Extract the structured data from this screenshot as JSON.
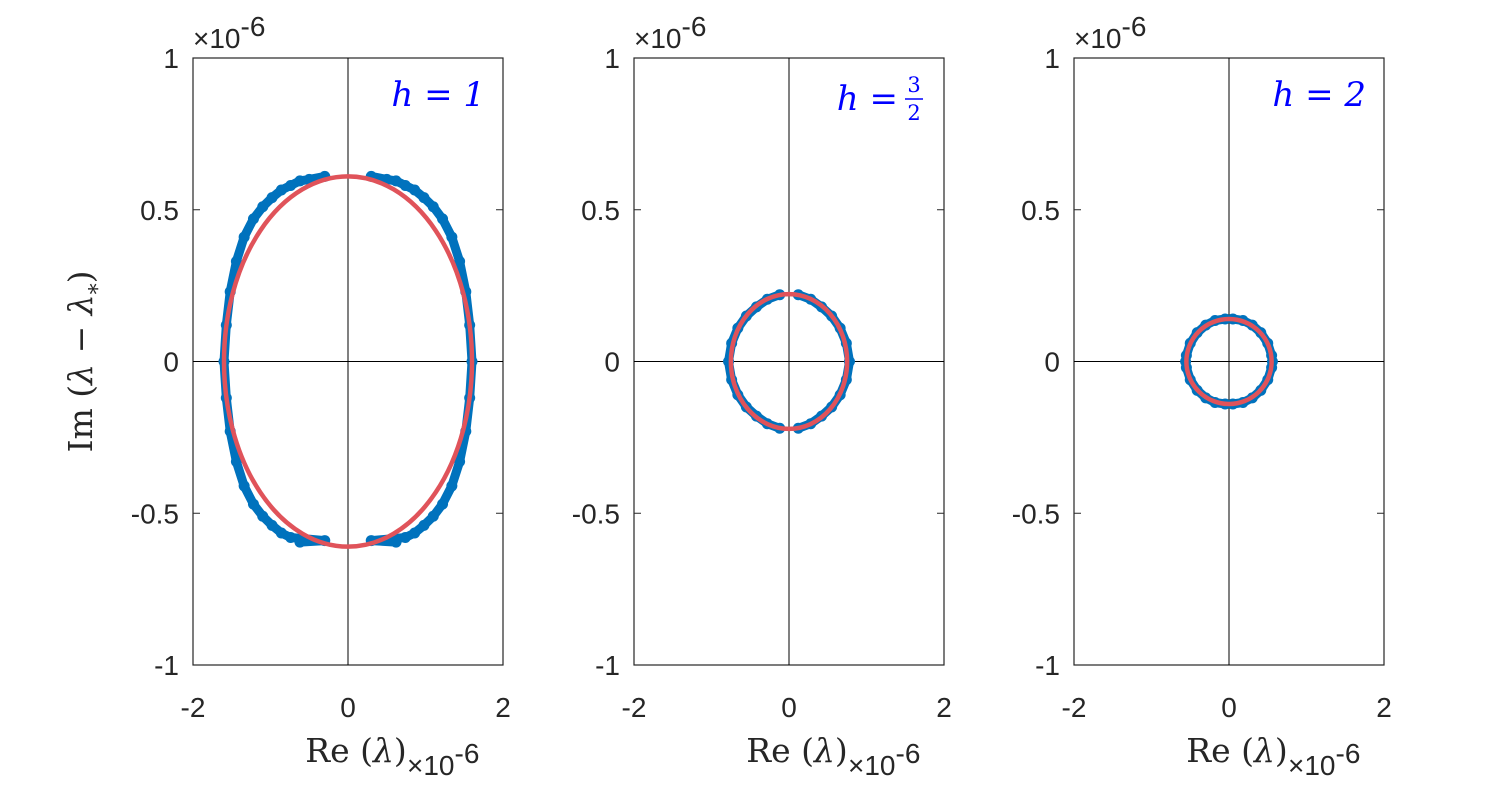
{
  "chart_data": [
    {
      "type": "scatter",
      "xlabel": "Re (λ)",
      "ylabel": "Im (λ − λ*)",
      "x_exponent": "×10-6",
      "y_exponent": "×10-6",
      "annotation": "h = 1",
      "xlim": [
        -2,
        2
      ],
      "ylim": [
        -1,
        1
      ],
      "xticks": [
        "-2",
        "0",
        "2"
      ],
      "yticks": [
        "-1",
        "-0.5",
        "0",
        "0.5",
        "1"
      ],
      "axis_lines": "cross at origin",
      "grid": false,
      "series": [
        {
          "kind": "points",
          "color": "#0072BD",
          "gap_near_imag_axis": 0.3,
          "points": [
            {
              "x": -0.3,
              "y": 0.61
            },
            {
              "x": -0.5,
              "y": 0.6
            },
            {
              "x": -0.62,
              "y": 0.595
            },
            {
              "x": -0.74,
              "y": 0.58
            },
            {
              "x": -0.86,
              "y": 0.565
            },
            {
              "x": -0.98,
              "y": 0.54
            },
            {
              "x": -1.1,
              "y": 0.51
            },
            {
              "x": -1.22,
              "y": 0.47
            },
            {
              "x": -1.34,
              "y": 0.41
            },
            {
              "x": -1.44,
              "y": 0.33
            },
            {
              "x": -1.52,
              "y": 0.23
            },
            {
              "x": -1.57,
              "y": 0.12
            },
            {
              "x": -1.6,
              "y": 0.0
            },
            {
              "x": -1.57,
              "y": -0.12
            },
            {
              "x": -1.52,
              "y": -0.23
            },
            {
              "x": -1.44,
              "y": -0.33
            },
            {
              "x": -1.34,
              "y": -0.41
            },
            {
              "x": -1.22,
              "y": -0.47
            },
            {
              "x": -1.1,
              "y": -0.51
            },
            {
              "x": -0.98,
              "y": -0.54
            },
            {
              "x": -0.86,
              "y": -0.565
            },
            {
              "x": -0.74,
              "y": -0.58
            },
            {
              "x": -0.62,
              "y": -0.595
            },
            {
              "x": -0.3,
              "y": -0.59
            },
            {
              "x": 0.3,
              "y": 0.61
            },
            {
              "x": 0.5,
              "y": 0.6
            },
            {
              "x": 0.62,
              "y": 0.595
            },
            {
              "x": 0.74,
              "y": 0.58
            },
            {
              "x": 0.86,
              "y": 0.565
            },
            {
              "x": 0.98,
              "y": 0.54
            },
            {
              "x": 1.1,
              "y": 0.51
            },
            {
              "x": 1.22,
              "y": 0.47
            },
            {
              "x": 1.34,
              "y": 0.41
            },
            {
              "x": 1.44,
              "y": 0.33
            },
            {
              "x": 1.52,
              "y": 0.23
            },
            {
              "x": 1.57,
              "y": 0.12
            },
            {
              "x": 1.6,
              "y": 0.0
            },
            {
              "x": 1.57,
              "y": -0.12
            },
            {
              "x": 1.52,
              "y": -0.23
            },
            {
              "x": 1.44,
              "y": -0.33
            },
            {
              "x": 1.34,
              "y": -0.41
            },
            {
              "x": 1.22,
              "y": -0.47
            },
            {
              "x": 1.1,
              "y": -0.51
            },
            {
              "x": 0.98,
              "y": -0.54
            },
            {
              "x": 0.86,
              "y": -0.565
            },
            {
              "x": 0.74,
              "y": -0.58
            },
            {
              "x": 0.62,
              "y": -0.595
            },
            {
              "x": 0.3,
              "y": -0.59
            }
          ]
        },
        {
          "kind": "ellipse",
          "color": "#E0535A",
          "center": [
            0,
            0
          ],
          "radius_x": 1.6,
          "radius_y": 0.61
        }
      ]
    },
    {
      "type": "scatter",
      "xlabel": "Re (λ)",
      "ylabel": "",
      "x_exponent": "×10-6",
      "y_exponent": "×10-6",
      "annotation": "h = ",
      "annotation_fraction": {
        "numerator": "3",
        "denominator": "2"
      },
      "xlim": [
        -2,
        2
      ],
      "ylim": [
        -1,
        1
      ],
      "xticks": [
        "-2",
        "0",
        "2"
      ],
      "yticks": [
        "-1",
        "-0.5",
        "0",
        "0.5",
        "1"
      ],
      "axis_lines": "cross at origin",
      "grid": false,
      "series": [
        {
          "kind": "points",
          "color": "#0072BD",
          "gap_near_imag_axis": 0.12,
          "points": [
            {
              "x": -0.12,
              "y": 0.22
            },
            {
              "x": -0.28,
              "y": 0.205
            },
            {
              "x": -0.42,
              "y": 0.18
            },
            {
              "x": -0.55,
              "y": 0.15
            },
            {
              "x": -0.66,
              "y": 0.11
            },
            {
              "x": -0.74,
              "y": 0.06
            },
            {
              "x": -0.78,
              "y": 0.0
            },
            {
              "x": -0.74,
              "y": -0.06
            },
            {
              "x": -0.66,
              "y": -0.11
            },
            {
              "x": -0.55,
              "y": -0.15
            },
            {
              "x": -0.42,
              "y": -0.18
            },
            {
              "x": -0.28,
              "y": -0.205
            },
            {
              "x": -0.12,
              "y": -0.22
            },
            {
              "x": 0.12,
              "y": 0.22
            },
            {
              "x": 0.28,
              "y": 0.205
            },
            {
              "x": 0.42,
              "y": 0.18
            },
            {
              "x": 0.55,
              "y": 0.15
            },
            {
              "x": 0.66,
              "y": 0.11
            },
            {
              "x": 0.74,
              "y": 0.06
            },
            {
              "x": 0.78,
              "y": 0.0
            },
            {
              "x": 0.74,
              "y": -0.06
            },
            {
              "x": 0.66,
              "y": -0.11
            },
            {
              "x": 0.55,
              "y": -0.15
            },
            {
              "x": 0.42,
              "y": -0.18
            },
            {
              "x": 0.28,
              "y": -0.205
            },
            {
              "x": 0.12,
              "y": -0.22
            }
          ]
        },
        {
          "kind": "ellipse",
          "color": "#E0535A",
          "center": [
            0,
            0
          ],
          "radius_x": 0.75,
          "radius_y": 0.222
        }
      ]
    },
    {
      "type": "scatter",
      "xlabel": "Re (λ)",
      "ylabel": "",
      "x_exponent": "×10-6",
      "y_exponent": "×10-6",
      "annotation": "h = 2",
      "xlim": [
        -2,
        2
      ],
      "ylim": [
        -1,
        1
      ],
      "xticks": [
        "-2",
        "0",
        "2"
      ],
      "yticks": [
        "-1",
        "-0.5",
        "0",
        "0.5",
        "1"
      ],
      "axis_lines": "cross at origin",
      "grid": false,
      "series": [
        {
          "kind": "points",
          "color": "#0072BD",
          "gap_near_imag_axis": 0.02,
          "points": [
            {
              "x": -0.05,
              "y": 0.14
            },
            {
              "x": -0.18,
              "y": 0.135
            },
            {
              "x": -0.3,
              "y": 0.12
            },
            {
              "x": -0.41,
              "y": 0.095
            },
            {
              "x": -0.5,
              "y": 0.06
            },
            {
              "x": -0.55,
              "y": 0.02
            },
            {
              "x": -0.56,
              "y": 0.0
            },
            {
              "x": -0.55,
              "y": -0.02
            },
            {
              "x": -0.5,
              "y": -0.06
            },
            {
              "x": -0.41,
              "y": -0.095
            },
            {
              "x": -0.3,
              "y": -0.12
            },
            {
              "x": -0.18,
              "y": -0.135
            },
            {
              "x": -0.05,
              "y": -0.14
            },
            {
              "x": 0.05,
              "y": 0.14
            },
            {
              "x": 0.18,
              "y": 0.135
            },
            {
              "x": 0.3,
              "y": 0.12
            },
            {
              "x": 0.41,
              "y": 0.095
            },
            {
              "x": 0.5,
              "y": 0.06
            },
            {
              "x": 0.55,
              "y": 0.02
            },
            {
              "x": 0.56,
              "y": 0.0
            },
            {
              "x": 0.55,
              "y": -0.02
            },
            {
              "x": 0.5,
              "y": -0.06
            },
            {
              "x": 0.41,
              "y": -0.095
            },
            {
              "x": 0.3,
              "y": -0.12
            },
            {
              "x": 0.18,
              "y": -0.135
            },
            {
              "x": 0.05,
              "y": -0.14
            }
          ]
        },
        {
          "kind": "ellipse",
          "color": "#E0535A",
          "center": [
            0,
            0
          ],
          "radius_x": 0.55,
          "radius_y": 0.14
        }
      ]
    }
  ]
}
